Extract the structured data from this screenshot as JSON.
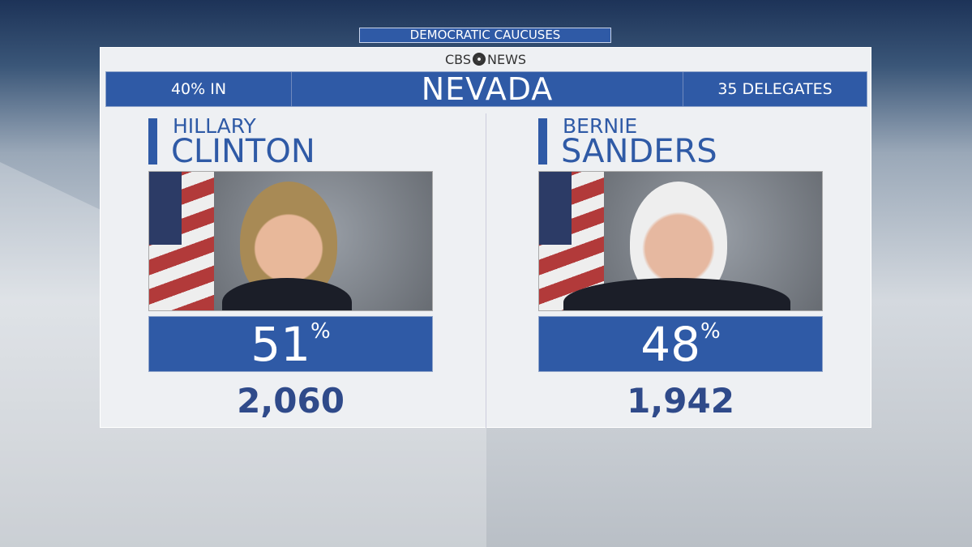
{
  "header": {
    "race": "DEMOCRATIC CAUCUSES",
    "network": "CBS NEWS",
    "network_parts": [
      "CBS",
      "NEWS"
    ],
    "reporting": "40% IN",
    "state": "NEVADA",
    "delegates": "35 DELEGATES"
  },
  "candidates": [
    {
      "first": "HILLARY",
      "last": "CLINTON",
      "percent": "51",
      "percent_sign": "%",
      "votes": "2,060"
    },
    {
      "first": "BERNIE",
      "last": "SANDERS",
      "percent": "48",
      "percent_sign": "%",
      "votes": "1,942"
    }
  ],
  "colors": {
    "accent": "#2f5aa6",
    "text": "#2f4a8a"
  }
}
